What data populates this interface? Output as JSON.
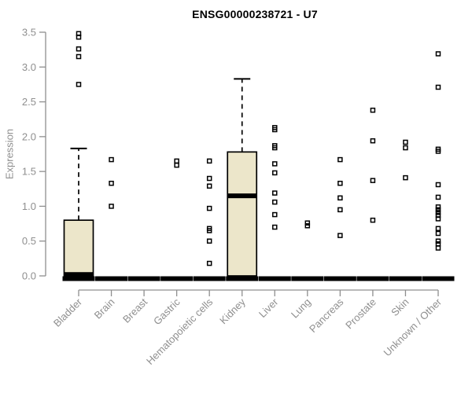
{
  "chart_data": {
    "type": "boxplot",
    "title": "ENSG00000238721 - U7",
    "ylabel": "Expression",
    "xlabel": "",
    "ylim": [
      0.0,
      3.5
    ],
    "yticks": [
      0.0,
      0.5,
      1.0,
      1.5,
      2.0,
      2.5,
      3.0,
      3.5
    ],
    "grid": false,
    "legend": "none",
    "categories": [
      "Bladder",
      "Brain",
      "Breast",
      "Gastric",
      "Hematopoietic cells",
      "Kidney",
      "Liver",
      "Lung",
      "Pancreas",
      "Prostate",
      "Skin",
      "Unknown / Other"
    ],
    "series": [
      {
        "category": "Bladder",
        "collapsed": false,
        "q1": 0.0,
        "median": 0.02,
        "q3": 0.8,
        "whisker_low": 0.0,
        "whisker_high": 1.83,
        "outliers": [
          3.48,
          3.43,
          3.26,
          3.15,
          2.75
        ]
      },
      {
        "category": "Brain",
        "collapsed": true,
        "q1": 0.0,
        "median": 0.0,
        "q3": 0.0,
        "whisker_low": 0.0,
        "whisker_high": 0.0,
        "outliers": [
          1.67,
          1.33,
          1.0
        ]
      },
      {
        "category": "Breast",
        "collapsed": true,
        "q1": 0.0,
        "median": 0.0,
        "q3": 0.0,
        "whisker_low": 0.0,
        "whisker_high": 0.0,
        "outliers": []
      },
      {
        "category": "Gastric",
        "collapsed": true,
        "q1": 0.0,
        "median": 0.0,
        "q3": 0.0,
        "whisker_low": 0.0,
        "whisker_high": 0.0,
        "outliers": [
          1.65,
          1.59
        ]
      },
      {
        "category": "Hematopoietic cells",
        "collapsed": true,
        "q1": 0.0,
        "median": 0.0,
        "q3": 0.0,
        "whisker_low": 0.0,
        "whisker_high": 0.0,
        "outliers": [
          1.65,
          1.4,
          1.29,
          0.97,
          0.68,
          0.65,
          0.5,
          0.18
        ]
      },
      {
        "category": "Kidney",
        "collapsed": false,
        "q1": 0.0,
        "median": 1.15,
        "q3": 1.78,
        "whisker_low": 0.0,
        "whisker_high": 2.83,
        "outliers": []
      },
      {
        "category": "Liver",
        "collapsed": true,
        "q1": 0.0,
        "median": 0.0,
        "q3": 0.0,
        "whisker_low": 0.0,
        "whisker_high": 0.0,
        "outliers": [
          2.13,
          2.1,
          1.87,
          1.84,
          1.61,
          1.48,
          1.19,
          1.06,
          0.88,
          0.7
        ]
      },
      {
        "category": "Lung",
        "collapsed": true,
        "q1": 0.0,
        "median": 0.0,
        "q3": 0.0,
        "whisker_low": 0.0,
        "whisker_high": 0.0,
        "outliers": [
          0.76,
          0.72
        ]
      },
      {
        "category": "Pancreas",
        "collapsed": true,
        "q1": 0.0,
        "median": 0.0,
        "q3": 0.0,
        "whisker_low": 0.0,
        "whisker_high": 0.0,
        "outliers": [
          1.67,
          1.33,
          1.12,
          0.95,
          0.58
        ]
      },
      {
        "category": "Prostate",
        "collapsed": true,
        "q1": 0.0,
        "median": 0.0,
        "q3": 0.0,
        "whisker_low": 0.0,
        "whisker_high": 0.0,
        "outliers": [
          2.38,
          1.94,
          1.37,
          0.8
        ]
      },
      {
        "category": "Skin",
        "collapsed": true,
        "q1": 0.0,
        "median": 0.0,
        "q3": 0.0,
        "whisker_low": 0.0,
        "whisker_high": 0.0,
        "outliers": [
          1.92,
          1.84,
          1.41
        ]
      },
      {
        "category": "Unknown / Other",
        "collapsed": true,
        "q1": 0.0,
        "median": 0.0,
        "q3": 0.0,
        "whisker_low": 0.0,
        "whisker_high": 0.0,
        "outliers": [
          3.19,
          2.71,
          1.82,
          1.79,
          1.31,
          1.13,
          0.99,
          0.95,
          0.91,
          0.87,
          0.82,
          0.68,
          0.61,
          0.5,
          0.46,
          0.4
        ]
      }
    ],
    "colors": {
      "box_fill": "#ece6ca",
      "box_border": "#000000",
      "median": "#000000",
      "whisker": "#000000",
      "point": "#000000",
      "axis": "#8f8f8f",
      "tick_label": "#8f8f8f",
      "title": "#000000"
    }
  }
}
